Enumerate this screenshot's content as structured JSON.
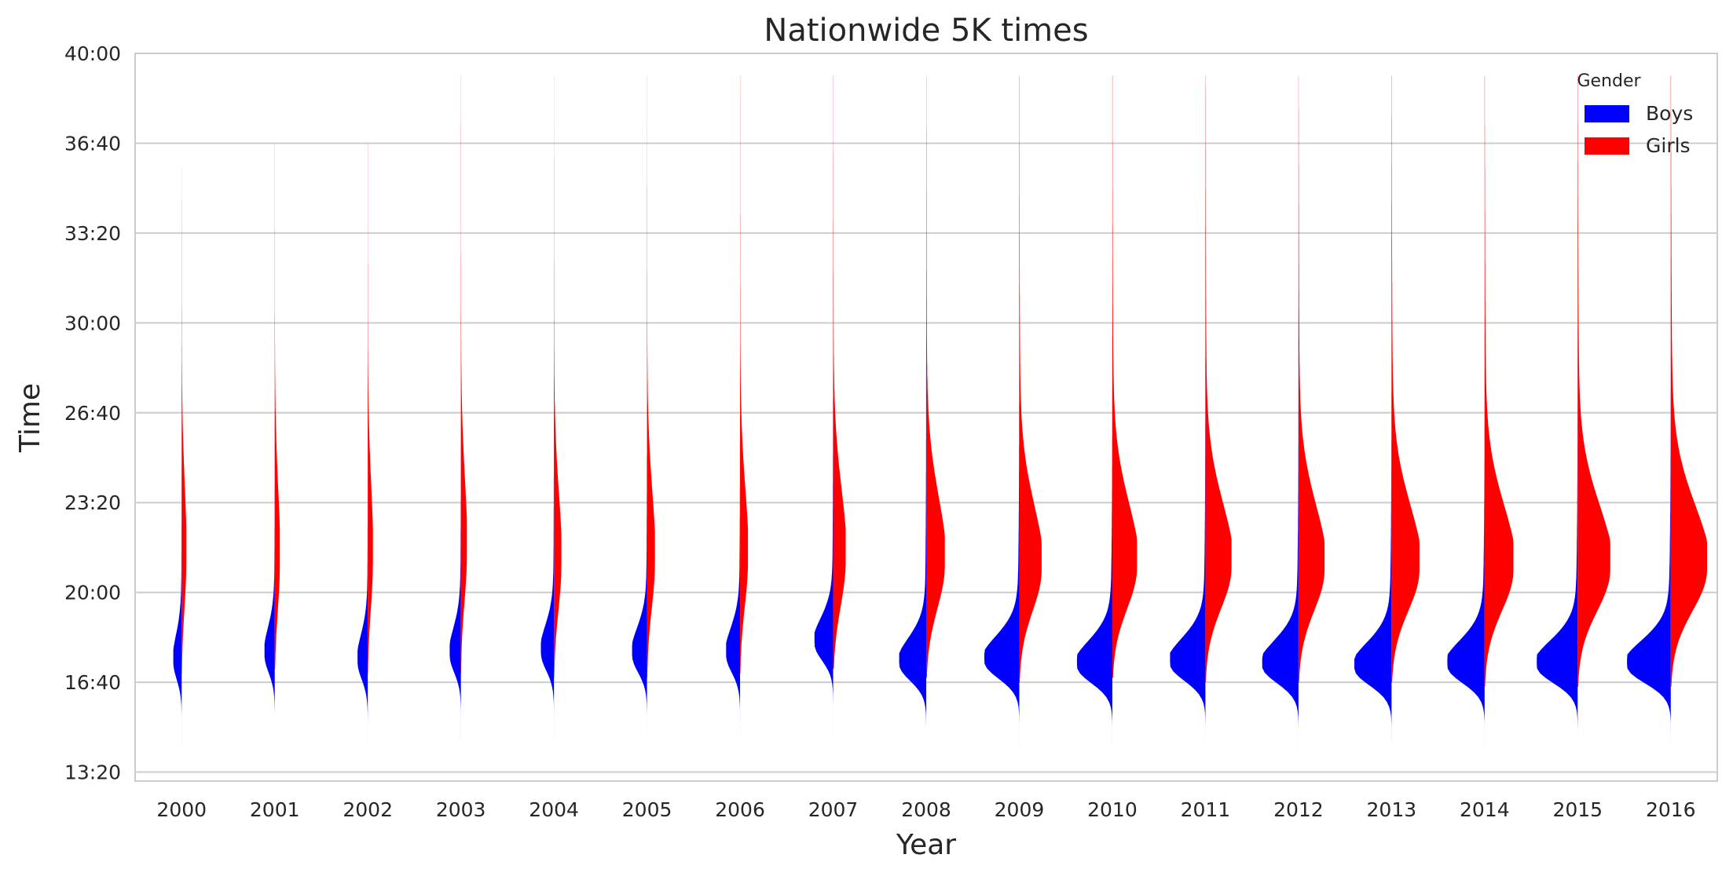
{
  "chart_data": {
    "type": "violin",
    "title": "Nationwide 5K times",
    "xlabel": "Year",
    "ylabel": "Time",
    "ylim_seconds": [
      780,
      2400
    ],
    "yticks": [
      {
        "value": 800,
        "label": "13:20"
      },
      {
        "value": 1000,
        "label": "16:40"
      },
      {
        "value": 1200,
        "label": "20:00"
      },
      {
        "value": 1400,
        "label": "23:20"
      },
      {
        "value": 1600,
        "label": "26:40"
      },
      {
        "value": 1800,
        "label": "30:00"
      },
      {
        "value": 2000,
        "label": "33:20"
      },
      {
        "value": 2200,
        "label": "36:40"
      },
      {
        "value": 2400,
        "label": "40:00"
      }
    ],
    "categories": [
      "2000",
      "2001",
      "2002",
      "2003",
      "2004",
      "2005",
      "2006",
      "2007",
      "2008",
      "2009",
      "2010",
      "2011",
      "2012",
      "2013",
      "2014",
      "2015",
      "2016"
    ],
    "grid": true,
    "legend": {
      "title": "Gender",
      "position": "top-right",
      "entries": [
        {
          "label": "Boys",
          "color": "#0000ff"
        },
        {
          "label": "Girls",
          "color": "#ff0000"
        }
      ]
    },
    "split_violin": true,
    "series": [
      {
        "name": "Boys",
        "color": "#0000ff",
        "side": "left",
        "median_seconds": [
          1045,
          1060,
          1045,
          1060,
          1065,
          1060,
          1060,
          1085,
          1040,
          1045,
          1035,
          1040,
          1035,
          1030,
          1035,
          1035,
          1035
        ],
        "spread_seconds": [
          40,
          40,
          40,
          40,
          40,
          40,
          40,
          38,
          38,
          38,
          38,
          38,
          38,
          38,
          38,
          38,
          38
        ],
        "min_seconds": [
          860,
          880,
          870,
          870,
          870,
          885,
          885,
          880,
          870,
          860,
          860,
          860,
          850,
          860,
          860,
          860,
          860
        ],
        "max_seconds": [
          2000,
          2250,
          2200,
          2350,
          2250,
          2250,
          2300,
          2350,
          2300,
          2350,
          2350,
          2300,
          2350,
          2350,
          2350,
          2350,
          2350
        ],
        "relative_width": [
          0.18,
          0.22,
          0.22,
          0.24,
          0.28,
          0.32,
          0.3,
          0.4,
          0.58,
          0.75,
          0.76,
          0.76,
          0.78,
          0.8,
          0.8,
          0.88,
          0.94
        ]
      },
      {
        "name": "Girls",
        "color": "#ff0000",
        "side": "right",
        "median_seconds": [
          1270,
          1265,
          1270,
          1285,
          1260,
          1265,
          1270,
          1270,
          1260,
          1250,
          1255,
          1255,
          1250,
          1250,
          1250,
          1250,
          1250
        ],
        "spread_seconds": [
          110,
          110,
          110,
          110,
          105,
          105,
          105,
          105,
          100,
          95,
          95,
          95,
          95,
          95,
          95,
          95,
          95
        ],
        "min_seconds": [
          1020,
          1030,
          1020,
          1020,
          1010,
          1010,
          1020,
          1030,
          1010,
          1000,
          1010,
          1000,
          1000,
          1000,
          990,
          990,
          990
        ],
        "max_seconds": [
          2150,
          2200,
          2200,
          2350,
          2350,
          2350,
          2350,
          2350,
          2350,
          2350,
          2350,
          2350,
          2350,
          2350,
          2350,
          2350,
          2350
        ],
        "relative_width": [
          0.1,
          0.11,
          0.11,
          0.13,
          0.16,
          0.17,
          0.17,
          0.27,
          0.4,
          0.48,
          0.53,
          0.56,
          0.56,
          0.6,
          0.62,
          0.7,
          0.78
        ]
      }
    ]
  }
}
